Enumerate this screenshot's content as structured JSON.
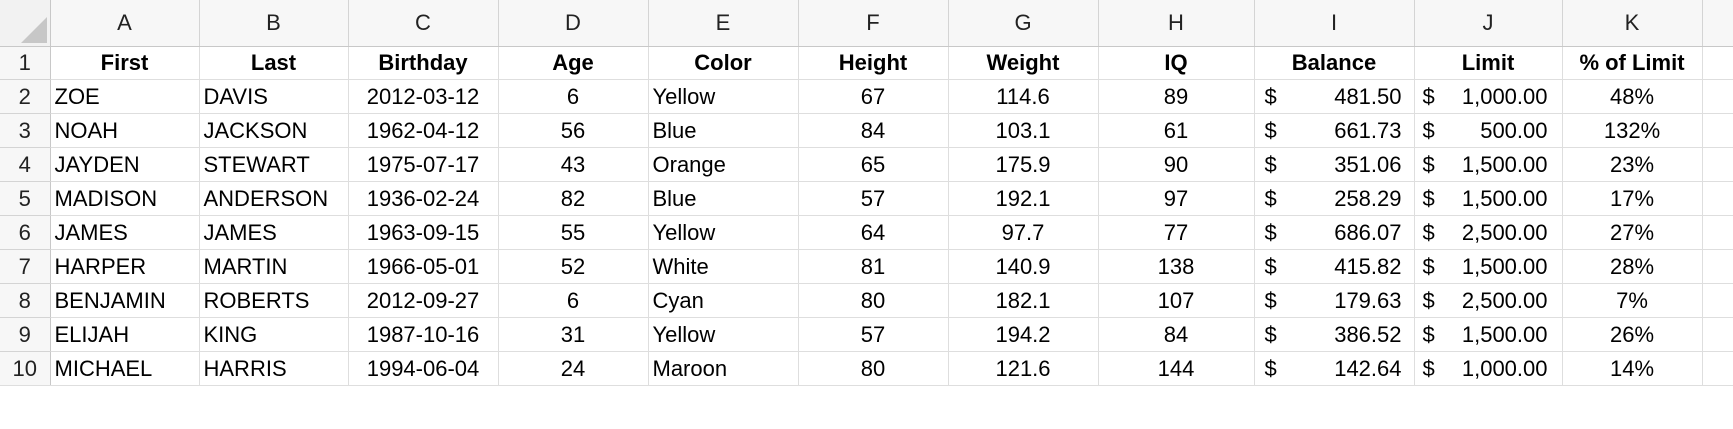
{
  "columns": [
    "A",
    "B",
    "C",
    "D",
    "E",
    "F",
    "G",
    "H",
    "I",
    "J",
    "K"
  ],
  "header_row": {
    "row_number": "1",
    "cells": [
      "First",
      "Last",
      "Birthday",
      "Age",
      "Color",
      "Height",
      "Weight",
      "IQ",
      "Balance",
      "Limit",
      "% of Limit"
    ]
  },
  "rows": [
    {
      "row_number": "2",
      "first": "ZOE",
      "last": "DAVIS",
      "birthday": "2012-03-12",
      "age": "6",
      "color": "Yellow",
      "height": "67",
      "weight": "114.6",
      "iq": "89",
      "balance_symbol": "$",
      "balance": "481.50",
      "limit_symbol": "$",
      "limit": "1,000.00",
      "pct": "48%"
    },
    {
      "row_number": "3",
      "first": "NOAH",
      "last": "JACKSON",
      "birthday": "1962-04-12",
      "age": "56",
      "color": "Blue",
      "height": "84",
      "weight": "103.1",
      "iq": "61",
      "balance_symbol": "$",
      "balance": "661.73",
      "limit_symbol": "$",
      "limit": "500.00",
      "pct": "132%"
    },
    {
      "row_number": "4",
      "first": "JAYDEN",
      "last": "STEWART",
      "birthday": "1975-07-17",
      "age": "43",
      "color": "Orange",
      "height": "65",
      "weight": "175.9",
      "iq": "90",
      "balance_symbol": "$",
      "balance": "351.06",
      "limit_symbol": "$",
      "limit": "1,500.00",
      "pct": "23%"
    },
    {
      "row_number": "5",
      "first": "MADISON",
      "last": "ANDERSON",
      "birthday": "1936-02-24",
      "age": "82",
      "color": "Blue",
      "height": "57",
      "weight": "192.1",
      "iq": "97",
      "balance_symbol": "$",
      "balance": "258.29",
      "limit_symbol": "$",
      "limit": "1,500.00",
      "pct": "17%"
    },
    {
      "row_number": "6",
      "first": "JAMES",
      "last": "JAMES",
      "birthday": "1963-09-15",
      "age": "55",
      "color": "Yellow",
      "height": "64",
      "weight": "97.7",
      "iq": "77",
      "balance_symbol": "$",
      "balance": "686.07",
      "limit_symbol": "$",
      "limit": "2,500.00",
      "pct": "27%"
    },
    {
      "row_number": "7",
      "first": "HARPER",
      "last": "MARTIN",
      "birthday": "1966-05-01",
      "age": "52",
      "color": "White",
      "height": "81",
      "weight": "140.9",
      "iq": "138",
      "balance_symbol": "$",
      "balance": "415.82",
      "limit_symbol": "$",
      "limit": "1,500.00",
      "pct": "28%"
    },
    {
      "row_number": "8",
      "first": "BENJAMIN",
      "last": "ROBERTS",
      "birthday": "2012-09-27",
      "age": "6",
      "color": "Cyan",
      "height": "80",
      "weight": "182.1",
      "iq": "107",
      "balance_symbol": "$",
      "balance": "179.63",
      "limit_symbol": "$",
      "limit": "2,500.00",
      "pct": "7%"
    },
    {
      "row_number": "9",
      "first": "ELIJAH",
      "last": "KING",
      "birthday": "1987-10-16",
      "age": "31",
      "color": "Yellow",
      "height": "57",
      "weight": "194.2",
      "iq": "84",
      "balance_symbol": "$",
      "balance": "386.52",
      "limit_symbol": "$",
      "limit": "1,500.00",
      "pct": "26%"
    },
    {
      "row_number": "10",
      "first": "MICHAEL",
      "last": "HARRIS",
      "birthday": "1994-06-04",
      "age": "24",
      "color": "Maroon",
      "height": "80",
      "weight": "121.6",
      "iq": "144",
      "balance_symbol": "$",
      "balance": "142.64",
      "limit_symbol": "$",
      "limit": "1,000.00",
      "pct": "14%"
    }
  ],
  "colors": {
    "header_bg": "#f7f7f7",
    "gridline": "#dedede",
    "corner_triangle": "#c7c7c7"
  },
  "icons": {
    "select_all": "select-all-triangle-icon"
  }
}
